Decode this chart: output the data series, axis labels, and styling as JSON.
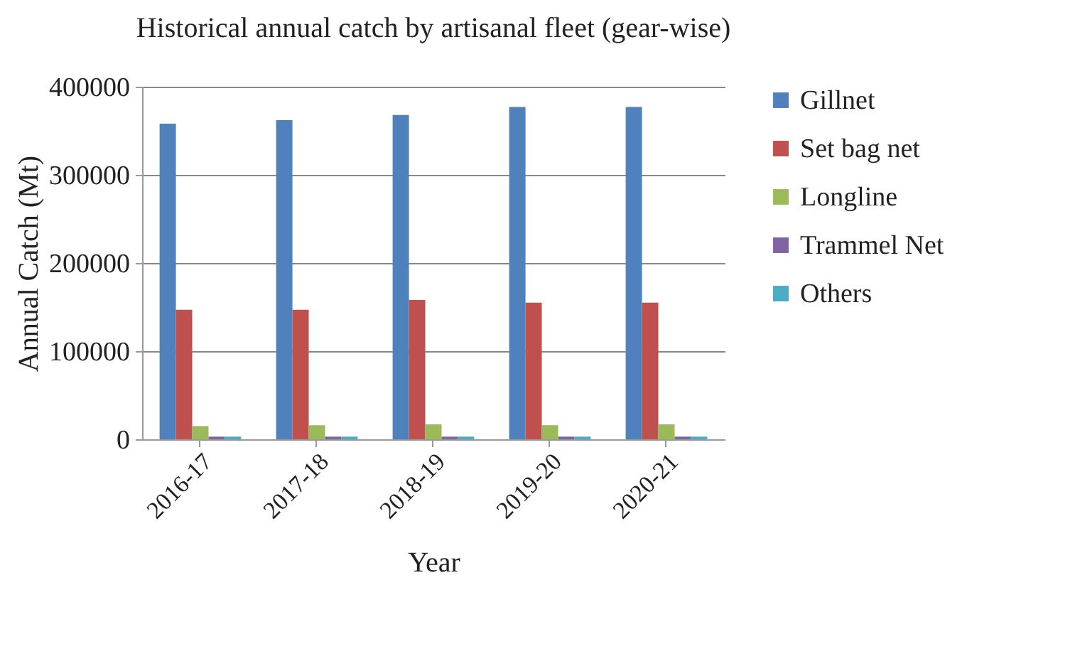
{
  "chart_data": {
    "type": "bar",
    "title": "Historical annual catch by artisanal fleet (gear-wise)",
    "xlabel": "Year",
    "ylabel": "Annual Catch (Mt)",
    "categories": [
      "2016-17",
      "2017-18",
      "2018-19",
      "2019-20",
      "2020-21"
    ],
    "series": [
      {
        "name": "Gillnet",
        "color": "#4f81bd",
        "values": [
          358000,
          362000,
          368000,
          377000,
          377000
        ]
      },
      {
        "name": "Set bag net",
        "color": "#c0504d",
        "values": [
          147000,
          147000,
          158000,
          155000,
          155000
        ]
      },
      {
        "name": "Longline",
        "color": "#9bbb59",
        "values": [
          15000,
          16000,
          17000,
          16000,
          17000
        ]
      },
      {
        "name": "Trammel Net",
        "color": "#8064a2",
        "values": [
          3000,
          3000,
          3000,
          3000,
          3000
        ]
      },
      {
        "name": "Others",
        "color": "#4bacc6",
        "values": [
          3000,
          3000,
          3000,
          3000,
          3000
        ]
      }
    ],
    "ylim": [
      0,
      400000
    ],
    "yticks": [
      0,
      100000,
      200000,
      300000,
      400000
    ],
    "grid": "y",
    "legend": "right"
  }
}
